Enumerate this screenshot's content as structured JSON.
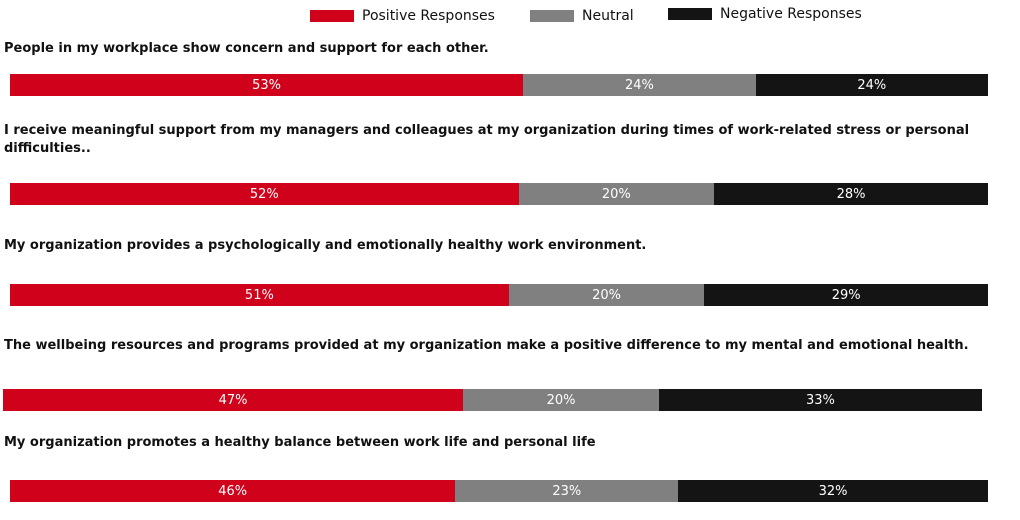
{
  "chart_data": {
    "type": "bar",
    "orientation": "horizontal",
    "stacked": true,
    "percent_stacked": true,
    "legend": {
      "position": "top",
      "entries": [
        {
          "name": "Positive Responses",
          "color": "#d0021b"
        },
        {
          "name": "Neutral",
          "color": "#808080"
        },
        {
          "name": "Negative Responses",
          "color": "#141414"
        }
      ]
    },
    "categories": [
      "People in my workplace show concern and support for each other.",
      "I receive meaningful support from my managers and colleagues at my organization during times of work-related stress or personal difficulties..",
      "My organization provides a psychologically and emotionally healthy work environment.",
      "The wellbeing resources and programs provided at my organization make a positive difference to my mental and emotional health.",
      "My organization promotes a healthy balance between work life and personal life"
    ],
    "series": [
      {
        "name": "Positive Responses",
        "color": "#d0021b",
        "values": [
          53,
          52,
          51,
          47,
          46
        ],
        "labels": [
          "53%",
          "52%",
          "51%",
          "47%",
          "46%"
        ]
      },
      {
        "name": "Neutral",
        "color": "#808080",
        "values": [
          24,
          20,
          20,
          20,
          23
        ],
        "labels": [
          "24%",
          "20%",
          "20%",
          "20%",
          "23%"
        ]
      },
      {
        "name": "Negative Responses",
        "color": "#141414",
        "values": [
          24,
          28,
          29,
          33,
          32
        ],
        "labels": [
          "24%",
          "28%",
          "29%",
          "33%",
          "32%"
        ]
      }
    ]
  }
}
